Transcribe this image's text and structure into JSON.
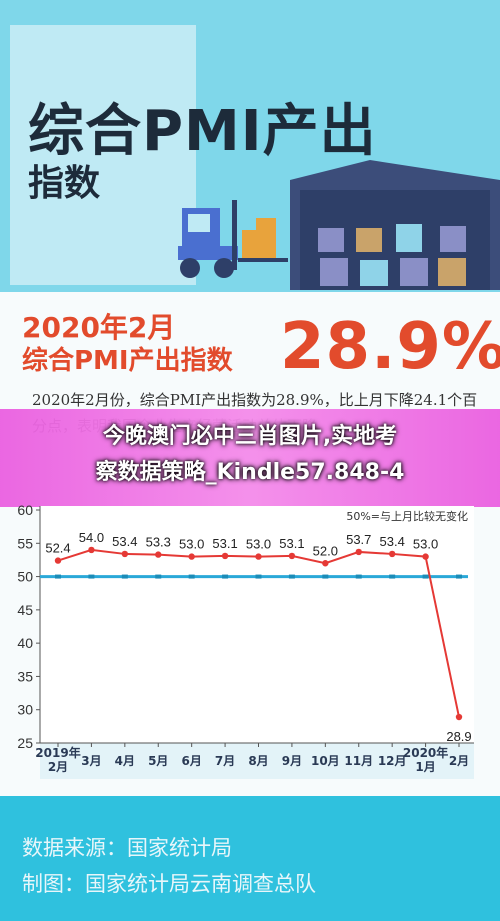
{
  "header": {
    "title": "综合PMI产出",
    "subtitle": "指数"
  },
  "headline": {
    "date": "2020年2月",
    "index_name": "综合PMI产出指数",
    "value": "28.9%"
  },
  "description": "2020年2月份，综合PMI产出指数为28.9%，比上月下降24.1个百分点，表明我国企业生产经营活动总体下降",
  "banner": {
    "line1": "今晚澳门必中三肖图片,实地考",
    "line2": "察数据策略_Kindle57.848-4"
  },
  "chart_data": {
    "type": "line",
    "title": "",
    "xlabel": "",
    "ylabel": "",
    "categories": [
      "2019年\n2月",
      "3月",
      "4月",
      "5月",
      "6月",
      "7月",
      "8月",
      "9月",
      "10月",
      "11月",
      "12月",
      "2020年\n1月",
      "2月"
    ],
    "series": [
      {
        "values": [
          52.4,
          54.0,
          53.4,
          53.3,
          53.0,
          53.1,
          53.0,
          53.1,
          52.0,
          53.7,
          53.4,
          53.0,
          28.9
        ],
        "color": "#e53935"
      }
    ],
    "reference_line": {
      "value": 50,
      "label": "50%=与上月比较无变化",
      "color": "#2aa8d8"
    },
    "ylim": [
      25,
      60
    ],
    "yticks": [
      25,
      30,
      35,
      40,
      45,
      50,
      55,
      60
    ],
    "grid": false
  },
  "footer": {
    "source": "数据来源：国家统计局",
    "credit": "制图：国家统计局云南调查总队"
  }
}
